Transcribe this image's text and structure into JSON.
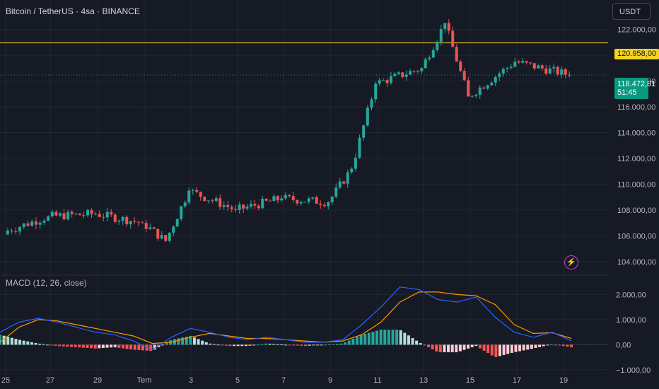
{
  "header": {
    "title": "Bitcoin / TetherUS · 4sa · BINANCE",
    "currency_button": "USDT",
    "indicator_title": "MACD (12, 26, close)"
  },
  "price_tags": {
    "level": "120.958,00",
    "last_price": "118.472,81",
    "countdown": "51:45"
  },
  "icons": {
    "alert": "lightning-icon"
  },
  "colors": {
    "background": "#161a25",
    "up": "#26a69a",
    "down": "#ef5350",
    "level_line": "#f5d321",
    "last_price": "#089981",
    "macd_line": "#2962ff",
    "signal_line": "#ff9800",
    "hist_up_strong": "#26a69a",
    "hist_up_weak": "#b2dfdb",
    "hist_down_strong": "#ff5252",
    "hist_down_weak": "#ffcdd2",
    "alert_icon": "#d154d8"
  },
  "chart_data": [
    {
      "type": "candlestick",
      "title": "Bitcoin / TetherUS · 4sa · BINANCE",
      "x_tick_labels": [
        "25",
        "27",
        "29",
        "Tem",
        "3",
        "5",
        "7",
        "9",
        "11",
        "13",
        "15",
        "17",
        "19"
      ],
      "y_ticks": [
        104000,
        106000,
        108000,
        110000,
        112000,
        114000,
        116000,
        118000,
        120000,
        122000
      ],
      "y_tick_labels": [
        "104.000,00",
        "106.000,00",
        "108.000,00",
        "110.000,00",
        "112.000,00",
        "114.000,00",
        "116.000,00",
        "118.000,00",
        "120.000,00",
        "122.000,00"
      ],
      "ylim": [
        103000,
        123300
      ],
      "horizontal_line": 120958,
      "last_price": 118472.81,
      "key_close_prices": [
        {
          "date": "25",
          "close": 106300
        },
        {
          "date": "27",
          "close": 107500
        },
        {
          "date": "29",
          "close": 107700
        },
        {
          "date": "Tem",
          "close": 107000
        },
        {
          "date": "2",
          "close": 105600
        },
        {
          "date": "3",
          "close": 109500
        },
        {
          "date": "5",
          "close": 108000
        },
        {
          "date": "7",
          "close": 108900
        },
        {
          "date": "9",
          "close": 108600
        },
        {
          "date": "10",
          "close": 111200
        },
        {
          "date": "11",
          "close": 117800
        },
        {
          "date": "13",
          "close": 119000
        },
        {
          "date": "14",
          "close": 122500
        },
        {
          "date": "15",
          "close": 116800
        },
        {
          "date": "17",
          "close": 119500
        },
        {
          "date": "19",
          "close": 118473
        }
      ]
    },
    {
      "type": "macd",
      "title": "MACD (12, 26, close)",
      "y_ticks": [
        -1000,
        0,
        1000,
        2000
      ],
      "y_tick_labels": [
        "−1.000,00",
        "0,00",
        "1.000,00",
        "2.000,00"
      ],
      "ylim": [
        -1200,
        2350
      ],
      "series": [
        {
          "name": "MACD",
          "values": [
            500,
            900,
            1050,
            900,
            700,
            500,
            400,
            150,
            -200,
            300,
            650,
            500,
            300,
            200,
            300,
            200,
            100,
            100,
            200,
            800,
            1500,
            2300,
            2200,
            1800,
            1700,
            1900,
            1100,
            500,
            300,
            500,
            150
          ]
        },
        {
          "name": "Signal",
          "values": [
            100,
            700,
            1000,
            950,
            800,
            650,
            500,
            350,
            50,
            100,
            300,
            450,
            350,
            250,
            250,
            200,
            150,
            100,
            150,
            400,
            900,
            1700,
            2100,
            2100,
            2000,
            1950,
            1600,
            800,
            450,
            480,
            250
          ]
        },
        {
          "name": "Histogram",
          "values": [
            400,
            200,
            50,
            -50,
            -100,
            -150,
            -100,
            -200,
            -250,
            200,
            350,
            50,
            -50,
            -50,
            50,
            0,
            -50,
            0,
            50,
            400,
            600,
            600,
            100,
            -300,
            -300,
            -50,
            -500,
            -300,
            -150,
            20,
            -100
          ]
        }
      ]
    }
  ]
}
